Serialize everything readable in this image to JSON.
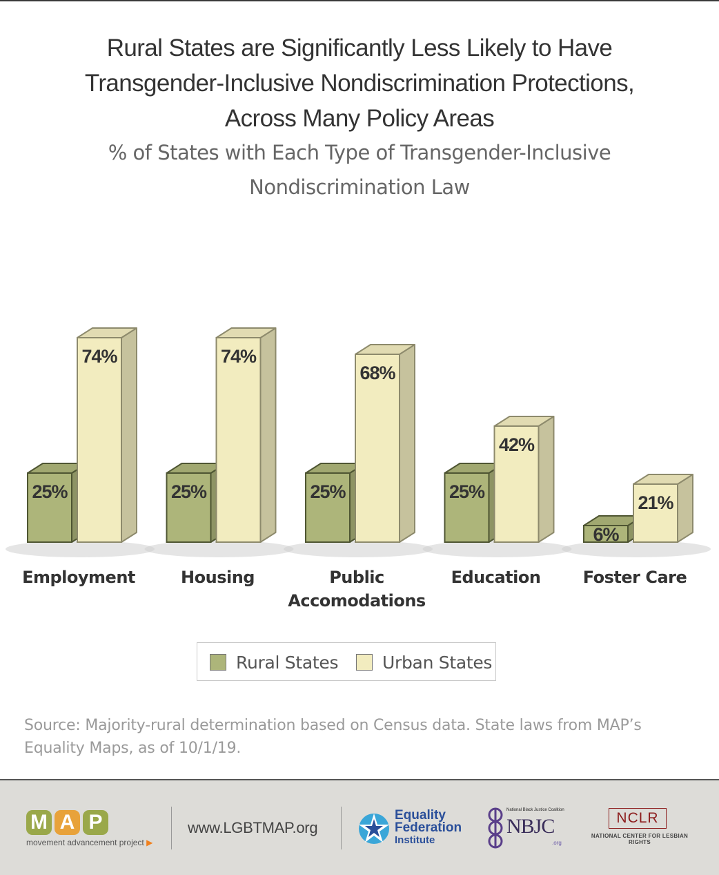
{
  "header": {
    "title_lines": [
      "Rural States are Significantly Less Likely to Have",
      "Transgender-Inclusive Nondiscrimination Protections,",
      "Across Many Policy Areas"
    ],
    "subtitle_lines": [
      "% of States with Each Type of Transgender-Inclusive",
      "Nondiscrimination Law"
    ]
  },
  "chart_data": {
    "type": "bar",
    "title": "Rural States are Significantly Less Likely to Have Transgender-Inclusive Nondiscrimination Protections, Across Many Policy Areas",
    "subtitle": "% of States with Each Type of Transgender-Inclusive Nondiscrimination Law",
    "categories": [
      [
        "Employment"
      ],
      [
        "Housing"
      ],
      [
        "Public",
        "Accomodations"
      ],
      [
        "Education"
      ],
      [
        "Foster Care"
      ]
    ],
    "series": [
      {
        "name": "Rural States",
        "values": [
          25,
          25,
          25,
          25,
          6
        ],
        "labels": [
          "25%",
          "25%",
          "25%",
          "25%",
          "6%"
        ],
        "color": "#adb57a"
      },
      {
        "name": "Urban States",
        "values": [
          74,
          74,
          68,
          42,
          21
        ],
        "labels": [
          "74%",
          "74%",
          "68%",
          "42%",
          "21%"
        ],
        "color": "#f2ecbf"
      }
    ],
    "ylim": [
      0,
      100
    ],
    "grid": false,
    "legend_position": "bottom"
  },
  "source": {
    "lines": [
      "Source: Majority-rural determination based on Census data. State laws from MAP’s",
      "Equality Maps, as of 10/1/19."
    ]
  },
  "footer": {
    "map_letters": [
      "M",
      "A",
      "P"
    ],
    "map_letter_colors": [
      "#9aa84a",
      "#e8a23a",
      "#9aa84a"
    ],
    "map_tagline": "movement advancement project",
    "website": "www.LGBTMAP.org",
    "efi_lines": [
      "Equality",
      "Federation",
      "Institute"
    ],
    "nbjc_top": "National Black Justice Coalition",
    "nbjc_name": "NBJC",
    "nbjc_org": ".org",
    "nclr_name": "NCLR",
    "nclr_sub": "NATIONAL CENTER FOR LESBIAN RIGHTS"
  }
}
